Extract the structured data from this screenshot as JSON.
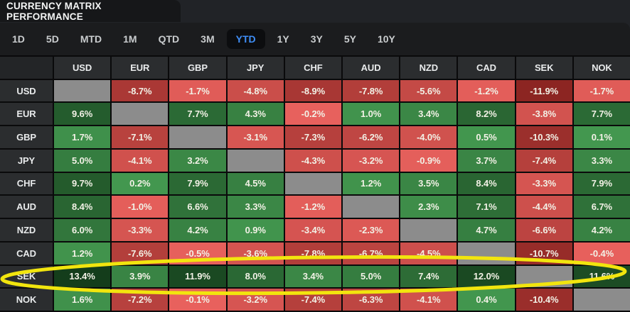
{
  "header": {
    "title": "CURRENCY MATRIX PERFORMANCE"
  },
  "tabs": {
    "items": [
      "1D",
      "5D",
      "MTD",
      "1M",
      "QTD",
      "3M",
      "YTD",
      "1Y",
      "3Y",
      "5Y",
      "10Y"
    ],
    "selected": "YTD"
  },
  "chart_data": {
    "type": "heatmap",
    "title": "CURRENCY MATRIX PERFORMANCE",
    "period": "YTD",
    "columns": [
      "USD",
      "EUR",
      "GBP",
      "JPY",
      "CHF",
      "AUD",
      "NZD",
      "CAD",
      "SEK",
      "NOK"
    ],
    "rows": [
      {
        "label": "USD",
        "values": [
          null,
          -8.7,
          -1.7,
          -4.8,
          -8.9,
          -7.8,
          -5.6,
          -1.2,
          -11.9,
          -1.7
        ]
      },
      {
        "label": "EUR",
        "values": [
          9.6,
          null,
          7.7,
          4.3,
          -0.2,
          1.0,
          3.4,
          8.2,
          -3.8,
          7.7
        ]
      },
      {
        "label": "GBP",
        "values": [
          1.7,
          -7.1,
          null,
          -3.1,
          -7.3,
          -6.2,
          -4.0,
          0.5,
          -10.3,
          0.1
        ]
      },
      {
        "label": "JPY",
        "values": [
          5.0,
          -4.1,
          3.2,
          null,
          -4.3,
          -3.2,
          -0.9,
          3.7,
          -7.4,
          3.3
        ]
      },
      {
        "label": "CHF",
        "values": [
          9.7,
          0.2,
          7.9,
          4.5,
          null,
          1.2,
          3.5,
          8.4,
          -3.3,
          7.9
        ]
      },
      {
        "label": "AUD",
        "values": [
          8.4,
          -1.0,
          6.6,
          3.3,
          -1.2,
          null,
          2.3,
          7.1,
          -4.4,
          6.7
        ]
      },
      {
        "label": "NZD",
        "values": [
          6.0,
          -3.3,
          4.2,
          0.9,
          -3.4,
          -2.3,
          null,
          4.7,
          -6.6,
          4.2
        ]
      },
      {
        "label": "CAD",
        "values": [
          1.2,
          -7.6,
          -0.5,
          -3.6,
          -7.8,
          -6.7,
          -4.5,
          null,
          -10.7,
          -0.4
        ]
      },
      {
        "label": "SEK",
        "values": [
          13.4,
          3.9,
          11.9,
          8.0,
          3.4,
          5.0,
          7.4,
          12.0,
          null,
          11.6
        ]
      },
      {
        "label": "NOK",
        "values": [
          1.6,
          -7.2,
          -0.1,
          -3.2,
          -7.4,
          -6.3,
          -4.1,
          0.4,
          -10.4,
          null
        ]
      }
    ],
    "value_suffix": "%",
    "scale": {
      "green_max": 13.4,
      "red_max": 11.9
    }
  },
  "colors": {
    "green_light": "#43974F",
    "green_dark": "#143D1B",
    "red_light": "#E8615D",
    "red_dark": "#8C2522",
    "diagonal": "#8C8C8C",
    "accent_blue": "#3F8EF7",
    "annotation_yellow": "#F2E50E"
  },
  "annotation": {
    "type": "ellipse",
    "target_row": "SEK"
  }
}
